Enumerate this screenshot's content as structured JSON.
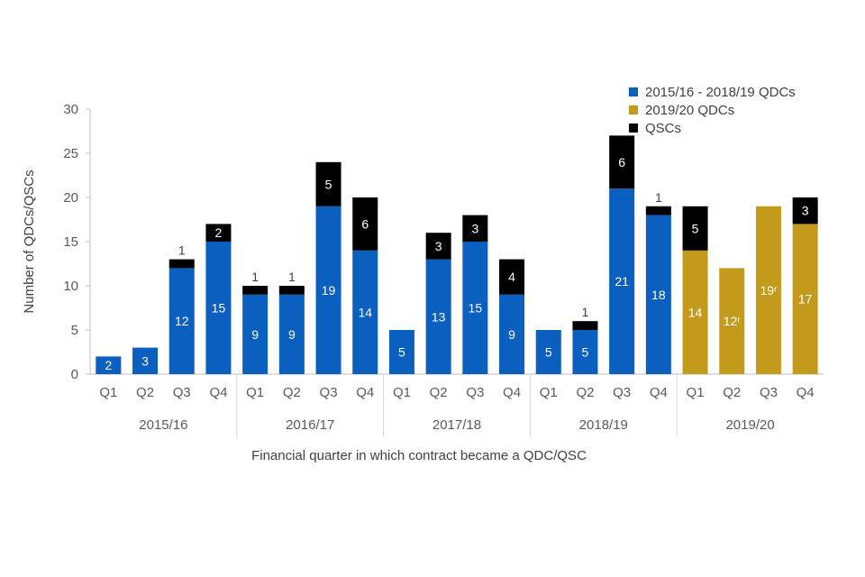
{
  "chart_data": {
    "type": "bar",
    "stacked": true,
    "title": "",
    "xlabel": "Financial quarter in which contract became a QDC/QSC",
    "ylabel": "Number of QDCs/QSCs",
    "ylim": [
      0,
      30
    ],
    "yticks": [
      0,
      5,
      10,
      15,
      20,
      25,
      30
    ],
    "grid": false,
    "legend_position": "top-right",
    "years": [
      "2015/16",
      "2016/17",
      "2017/18",
      "2018/19",
      "2019/20"
    ],
    "quarters": [
      "Q1",
      "Q2",
      "Q3",
      "Q4"
    ],
    "categories": [
      "2015/16 Q1",
      "2015/16 Q2",
      "2015/16 Q3",
      "2015/16 Q4",
      "2016/17 Q1",
      "2016/17 Q2",
      "2016/17 Q3",
      "2016/17 Q4",
      "2017/18 Q1",
      "2017/18 Q2",
      "2017/18 Q3",
      "2017/18 Q4",
      "2018/19 Q1",
      "2018/19 Q2",
      "2018/19 Q3",
      "2018/19 Q4",
      "2019/20 Q1",
      "2019/20 Q2",
      "2019/20 Q3",
      "2019/20 Q4"
    ],
    "series": [
      {
        "name": "2015/16 - 2018/19 QDCs",
        "color": "#0a5fbf",
        "label_color": "#ffffff",
        "values": [
          2,
          3,
          12,
          15,
          9,
          9,
          19,
          14,
          5,
          13,
          15,
          9,
          5,
          5,
          21,
          18,
          0,
          0,
          0,
          0
        ],
        "labels": [
          "2",
          "3",
          "12",
          "15",
          "9",
          "9",
          "19",
          "14",
          "5",
          "13",
          "15",
          "9",
          "5",
          "5",
          "21",
          "18",
          "",
          "",
          "",
          ""
        ]
      },
      {
        "name": "2019/20 QDCs",
        "color": "#c49a1c",
        "label_color": "#ffffff",
        "values": [
          0,
          0,
          0,
          0,
          0,
          0,
          0,
          0,
          0,
          0,
          0,
          0,
          0,
          0,
          0,
          0,
          14,
          12,
          19,
          17
        ],
        "labels": [
          "",
          "",
          "",
          "",
          "",
          "",
          "",
          "",
          "",
          "",
          "",
          "",
          "",
          "",
          "",
          "",
          "14",
          "12ʳ",
          "19ʳ",
          "17"
        ]
      },
      {
        "name": "QSCs",
        "color": "#000000",
        "label_color": "#ffffff",
        "values": [
          0,
          0,
          1,
          2,
          1,
          1,
          5,
          6,
          0,
          3,
          3,
          4,
          0,
          1,
          6,
          1,
          5,
          0,
          0,
          3
        ],
        "labels": [
          "",
          "",
          "1",
          "2",
          "1",
          "1",
          "5",
          "6",
          "",
          "3",
          "3",
          "4",
          "",
          "1",
          "6",
          "1",
          "5",
          "",
          "",
          "3"
        ]
      }
    ]
  }
}
